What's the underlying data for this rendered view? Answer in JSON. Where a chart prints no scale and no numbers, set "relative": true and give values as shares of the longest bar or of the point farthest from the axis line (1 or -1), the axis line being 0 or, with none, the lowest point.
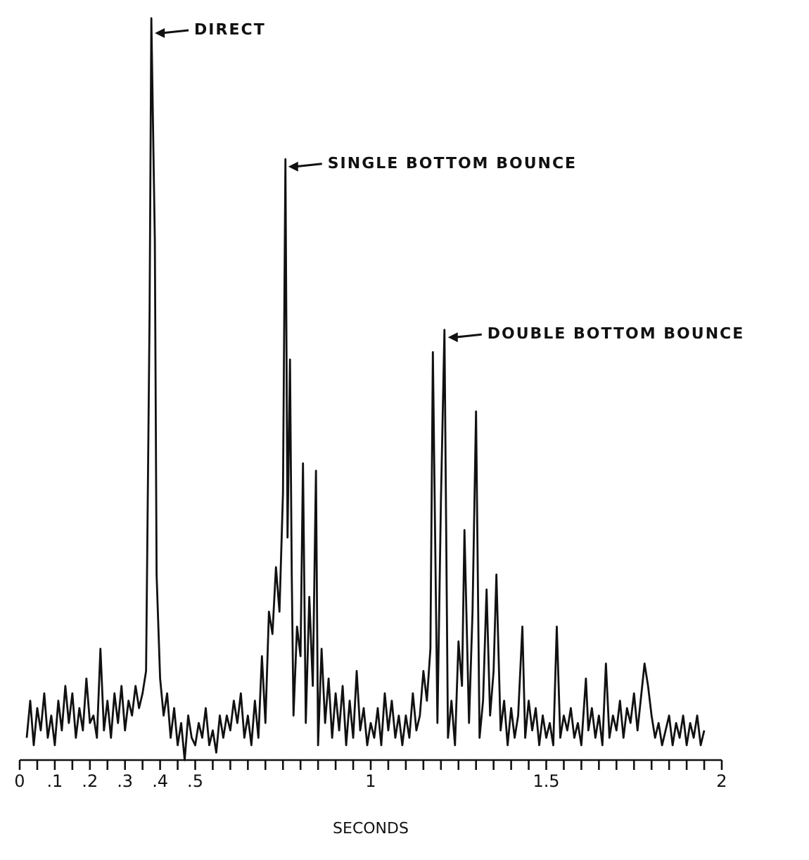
{
  "chart_data": {
    "type": "line",
    "relative": true,
    "xlabel": "SECONDS",
    "color": "#111111",
    "marker": "none",
    "xlim": [
      0,
      2
    ],
    "xticks": [
      0,
      {
        "value": 0.05,
        "label": null
      },
      {
        "value": 0.1,
        "label": ".1"
      },
      {
        "value": 0.15,
        "label": null
      },
      {
        "value": 0.2,
        "label": ".2"
      },
      {
        "value": 0.25,
        "label": null
      },
      {
        "value": 0.3,
        "label": ".3"
      },
      {
        "value": 0.35,
        "label": null
      },
      {
        "value": 0.4,
        "label": ".4"
      },
      {
        "value": 0.45,
        "label": null
      },
      {
        "value": 0.5,
        "label": ".5"
      },
      {
        "value": 0.55,
        "label": null
      },
      {
        "value": 0.6,
        "label": null
      },
      {
        "value": 0.65,
        "label": null
      },
      {
        "value": 0.7,
        "label": null
      },
      {
        "value": 0.75,
        "label": null
      },
      {
        "value": 0.8,
        "label": null
      },
      {
        "value": 0.85,
        "label": null
      },
      {
        "value": 0.9,
        "label": null
      },
      {
        "value": 0.95,
        "label": null
      },
      1,
      {
        "value": 1.05,
        "label": null
      },
      {
        "value": 1.1,
        "label": null
      },
      {
        "value": 1.15,
        "label": null
      },
      {
        "value": 1.2,
        "label": null
      },
      {
        "value": 1.25,
        "label": null
      },
      {
        "value": 1.3,
        "label": null
      },
      {
        "value": 1.35,
        "label": null
      },
      {
        "value": 1.4,
        "label": null
      },
      {
        "value": 1.45,
        "label": null
      },
      {
        "value": 1.5,
        "label": "1.5"
      },
      {
        "value": 1.55,
        "label": null
      },
      {
        "value": 1.6,
        "label": null
      },
      {
        "value": 1.65,
        "label": null
      },
      {
        "value": 1.7,
        "label": null
      },
      {
        "value": 1.75,
        "label": null
      },
      {
        "value": 1.8,
        "label": null
      },
      {
        "value": 1.85,
        "label": null
      },
      {
        "value": 1.9,
        "label": null
      },
      {
        "value": 1.95,
        "label": null
      },
      2
    ],
    "x": [
      0.02,
      0.03,
      0.04,
      0.05,
      0.06,
      0.07,
      0.08,
      0.09,
      0.1,
      0.11,
      0.12,
      0.13,
      0.14,
      0.15,
      0.16,
      0.17,
      0.18,
      0.19,
      0.2,
      0.21,
      0.22,
      0.23,
      0.24,
      0.25,
      0.26,
      0.27,
      0.28,
      0.29,
      0.3,
      0.31,
      0.32,
      0.33,
      0.34,
      0.35,
      0.36,
      0.37,
      0.375,
      0.385,
      0.39,
      0.4,
      0.41,
      0.42,
      0.43,
      0.44,
      0.45,
      0.46,
      0.47,
      0.48,
      0.49,
      0.5,
      0.51,
      0.52,
      0.53,
      0.54,
      0.55,
      0.56,
      0.57,
      0.58,
      0.59,
      0.6,
      0.61,
      0.62,
      0.63,
      0.64,
      0.65,
      0.66,
      0.67,
      0.68,
      0.69,
      0.7,
      0.71,
      0.72,
      0.73,
      0.74,
      0.75,
      0.757,
      0.763,
      0.77,
      0.775,
      0.78,
      0.79,
      0.8,
      0.807,
      0.815,
      0.825,
      0.835,
      0.844,
      0.85,
      0.86,
      0.87,
      0.88,
      0.89,
      0.9,
      0.91,
      0.92,
      0.93,
      0.94,
      0.95,
      0.96,
      0.97,
      0.98,
      0.99,
      1.0,
      1.01,
      1.02,
      1.03,
      1.04,
      1.05,
      1.06,
      1.07,
      1.08,
      1.09,
      1.1,
      1.11,
      1.12,
      1.13,
      1.14,
      1.15,
      1.16,
      1.17,
      1.177,
      1.19,
      1.2,
      1.21,
      1.22,
      1.23,
      1.24,
      1.25,
      1.26,
      1.267,
      1.28,
      1.29,
      1.3,
      1.31,
      1.32,
      1.33,
      1.34,
      1.35,
      1.358,
      1.37,
      1.38,
      1.39,
      1.4,
      1.41,
      1.42,
      1.432,
      1.44,
      1.45,
      1.46,
      1.47,
      1.48,
      1.49,
      1.5,
      1.51,
      1.52,
      1.53,
      1.54,
      1.55,
      1.56,
      1.57,
      1.58,
      1.59,
      1.6,
      1.613,
      1.62,
      1.63,
      1.64,
      1.65,
      1.66,
      1.67,
      1.68,
      1.69,
      1.7,
      1.71,
      1.72,
      1.73,
      1.74,
      1.75,
      1.76,
      1.78,
      1.79,
      1.8,
      1.81,
      1.82,
      1.83,
      1.84,
      1.85,
      1.86,
      1.87,
      1.88,
      1.89,
      1.9,
      1.91,
      1.92,
      1.93,
      1.94,
      1.95
    ],
    "values": [
      0.03,
      0.08,
      0.02,
      0.07,
      0.04,
      0.09,
      0.03,
      0.06,
      0.02,
      0.08,
      0.04,
      0.1,
      0.05,
      0.09,
      0.03,
      0.07,
      0.04,
      0.11,
      0.05,
      0.06,
      0.03,
      0.15,
      0.04,
      0.08,
      0.03,
      0.09,
      0.05,
      0.1,
      0.04,
      0.08,
      0.06,
      0.1,
      0.07,
      0.09,
      0.12,
      0.6,
      1,
      0.7,
      0.25,
      0.11,
      0.06,
      0.09,
      0.03,
      0.07,
      0.02,
      0.05,
      0,
      0.06,
      0.03,
      0.02,
      0.05,
      0.03,
      0.07,
      0.02,
      0.04,
      0.01,
      0.06,
      0.03,
      0.06,
      0.04,
      0.08,
      0.05,
      0.09,
      0.03,
      0.06,
      0.02,
      0.08,
      0.03,
      0.14,
      0.05,
      0.2,
      0.17,
      0.26,
      0.2,
      0.36,
      0.81,
      0.3,
      0.54,
      0.25,
      0.06,
      0.18,
      0.14,
      0.4,
      0.05,
      0.22,
      0.1,
      0.39,
      0.02,
      0.15,
      0.05,
      0.11,
      0.03,
      0.09,
      0.04,
      0.1,
      0.02,
      0.08,
      0.03,
      0.12,
      0.04,
      0.07,
      0.02,
      0.05,
      0.03,
      0.07,
      0.02,
      0.09,
      0.04,
      0.08,
      0.03,
      0.06,
      0.02,
      0.06,
      0.03,
      0.09,
      0.04,
      0.06,
      0.12,
      0.08,
      0.15,
      0.55,
      0.05,
      0.35,
      0.58,
      0.03,
      0.08,
      0.02,
      0.16,
      0.1,
      0.31,
      0.05,
      0.2,
      0.47,
      0.03,
      0.08,
      0.23,
      0.06,
      0.12,
      0.25,
      0.04,
      0.08,
      0.02,
      0.07,
      0.03,
      0.06,
      0.18,
      0.03,
      0.08,
      0.04,
      0.07,
      0.02,
      0.06,
      0.03,
      0.05,
      0.02,
      0.18,
      0.03,
      0.06,
      0.04,
      0.07,
      0.03,
      0.05,
      0.02,
      0.11,
      0.04,
      0.07,
      0.03,
      0.06,
      0.02,
      0.13,
      0.03,
      0.06,
      0.04,
      0.08,
      0.03,
      0.07,
      0.05,
      0.09,
      0.04,
      0.13,
      0.1,
      0.06,
      0.03,
      0.05,
      0.02,
      0.04,
      0.06,
      0.02,
      0.05,
      0.03,
      0.06,
      0.02,
      0.05,
      0.03,
      0.06,
      0.02,
      0.04
    ],
    "annotations": [
      {
        "text": "DIRECT",
        "x": 0.385,
        "y": 0.98
      },
      {
        "text": "SINGLE BOTTOM BOUNCE",
        "x": 0.765,
        "y": 0.8
      },
      {
        "text": "DOUBLE BOTTOM BOUNCE",
        "x": 1.22,
        "y": 0.57
      }
    ]
  }
}
